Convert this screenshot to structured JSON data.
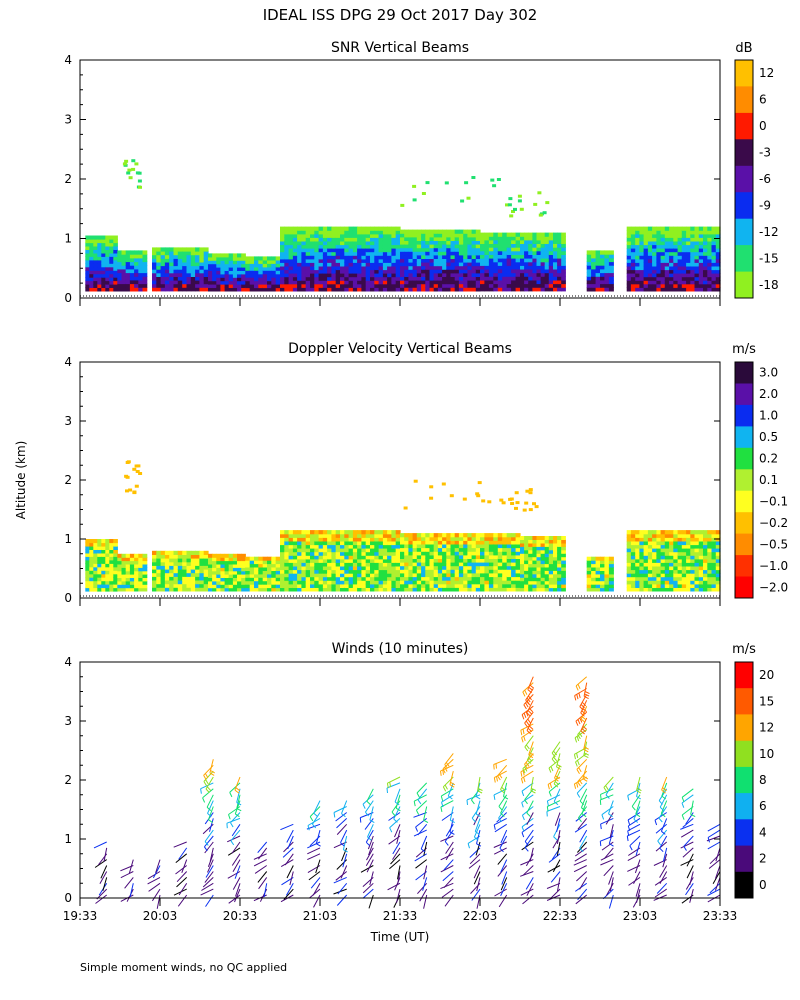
{
  "page_title": "IDEAL ISS DPG  29 Oct 2017 Day 302",
  "footnote": "Simple moment winds, no QC applied",
  "shared_x_axis": {
    "label": "Time (UT)",
    "ticks": [
      "19:33",
      "20:03",
      "20:33",
      "21:03",
      "21:33",
      "22:03",
      "22:33",
      "23:03",
      "23:33"
    ]
  },
  "shared_y_axis": {
    "label": "Altitude (km)"
  },
  "chart_data": [
    {
      "type": "heatmap",
      "title": "SNR Vertical Beams",
      "ylabel": "Altitude (km)",
      "ylim": [
        0,
        4
      ],
      "yticks": [
        "0",
        "1",
        "2",
        "3",
        "4"
      ],
      "colorbar": {
        "unit": "dB",
        "labels": [
          "12",
          "6",
          "0",
          "-3",
          "-6",
          "-9",
          "-12",
          "-15",
          "-18"
        ],
        "colors": [
          "#ffc000",
          "#ff8c00",
          "#ff1a00",
          "#3a0a4a",
          "#5a10a8",
          "#0a2cf0",
          "#10b4f0",
          "#20e070",
          "#90f020"
        ]
      },
      "x_extent_min": [
        0,
        240
      ],
      "blocks": [
        {
          "t0": 2,
          "t1": 14,
          "z0": 0.12,
          "z1": 1.05
        },
        {
          "t0": 14,
          "t1": 25,
          "z0": 0.12,
          "z1": 0.8
        },
        {
          "t0": 27,
          "t1": 48,
          "z0": 0.12,
          "z1": 0.85
        },
        {
          "t0": 48,
          "t1": 62,
          "z0": 0.12,
          "z1": 0.75
        },
        {
          "t0": 62,
          "t1": 75,
          "z0": 0.12,
          "z1": 0.7
        },
        {
          "t0": 75,
          "t1": 120,
          "z0": 0.12,
          "z1": 1.2
        },
        {
          "t0": 120,
          "t1": 150,
          "z0": 0.12,
          "z1": 1.15
        },
        {
          "t0": 150,
          "t1": 165,
          "z0": 0.12,
          "z1": 1.1
        },
        {
          "t0": 165,
          "t1": 182,
          "z0": 0.12,
          "z1": 1.1
        },
        {
          "t0": 190,
          "t1": 200,
          "z0": 0.12,
          "z1": 0.8
        },
        {
          "t0": 205,
          "t1": 240,
          "z0": 0.12,
          "z1": 1.2
        }
      ]
    },
    {
      "type": "heatmap",
      "title": "Doppler Velocity Vertical Beams",
      "ylabel": "Altitude (km)",
      "ylim": [
        0,
        4
      ],
      "yticks": [
        "0",
        "1",
        "2",
        "3",
        "4"
      ],
      "colorbar": {
        "unit": "m/s",
        "labels": [
          "3.0",
          "2.0",
          "1.0",
          "0.5",
          "0.2",
          "0.1",
          "−0.1",
          "−0.2",
          "−0.5",
          "−1.0",
          "−2.0"
        ],
        "colors": [
          "#2a0a3a",
          "#5a10a8",
          "#0a2cf0",
          "#10b4f0",
          "#20e040",
          "#b0f030",
          "#ffff20",
          "#ffc000",
          "#ff8c00",
          "#ff3000",
          "#ff0000"
        ]
      },
      "x_extent_min": [
        0,
        240
      ],
      "blocks": [
        {
          "t0": 2,
          "t1": 14,
          "z0": 0.12,
          "z1": 1.0
        },
        {
          "t0": 14,
          "t1": 25,
          "z0": 0.12,
          "z1": 0.75
        },
        {
          "t0": 27,
          "t1": 48,
          "z0": 0.12,
          "z1": 0.8
        },
        {
          "t0": 48,
          "t1": 62,
          "z0": 0.12,
          "z1": 0.75
        },
        {
          "t0": 62,
          "t1": 75,
          "z0": 0.12,
          "z1": 0.7
        },
        {
          "t0": 75,
          "t1": 120,
          "z0": 0.12,
          "z1": 1.15
        },
        {
          "t0": 120,
          "t1": 150,
          "z0": 0.12,
          "z1": 1.1
        },
        {
          "t0": 150,
          "t1": 165,
          "z0": 0.12,
          "z1": 1.1
        },
        {
          "t0": 165,
          "t1": 182,
          "z0": 0.12,
          "z1": 1.05
        },
        {
          "t0": 190,
          "t1": 200,
          "z0": 0.12,
          "z1": 0.7
        },
        {
          "t0": 205,
          "t1": 240,
          "z0": 0.12,
          "z1": 1.15
        }
      ]
    },
    {
      "type": "wind_barbs",
      "title": "Winds (10 minutes)",
      "ylabel": "Altitude (km)",
      "ylim": [
        0,
        4
      ],
      "yticks": [
        "0",
        "1",
        "2",
        "3",
        "4"
      ],
      "colorbar": {
        "unit": "m/s",
        "labels": [
          "20",
          "15",
          "12",
          "10",
          "8",
          "6",
          "4",
          "2",
          "0"
        ],
        "colors": [
          "#ff0000",
          "#ff5a00",
          "#ffa500",
          "#90e020",
          "#10e070",
          "#10b0f0",
          "#0a30f0",
          "#4a0a7a",
          "#000000"
        ]
      },
      "x_extent_min": [
        0,
        240
      ],
      "profile_times_min": [
        10,
        20,
        30,
        40,
        50,
        60,
        70,
        80,
        90,
        100,
        110,
        120,
        130,
        140,
        150,
        160,
        170,
        180,
        190,
        200,
        210,
        220,
        230,
        240
      ],
      "profile_top_km": [
        1.0,
        0.7,
        0.7,
        1.0,
        2.4,
        2.1,
        1.0,
        1.3,
        1.7,
        1.7,
        1.9,
        2.1,
        2.0,
        2.5,
        2.1,
        2.4,
        3.8,
        2.7,
        3.8,
        2.1,
        2.1,
        2.1,
        1.9,
        1.3
      ],
      "speed_ms_by_height": [
        {
          "z_km": 0.5,
          "speed_ms": 3
        },
        {
          "z_km": 1.0,
          "speed_ms": 5
        },
        {
          "z_km": 1.5,
          "speed_ms": 8
        },
        {
          "z_km": 2.0,
          "speed_ms": 12
        },
        {
          "z_km": 3.0,
          "speed_ms": 16
        },
        {
          "z_km": 3.8,
          "speed_ms": 20
        }
      ]
    }
  ]
}
